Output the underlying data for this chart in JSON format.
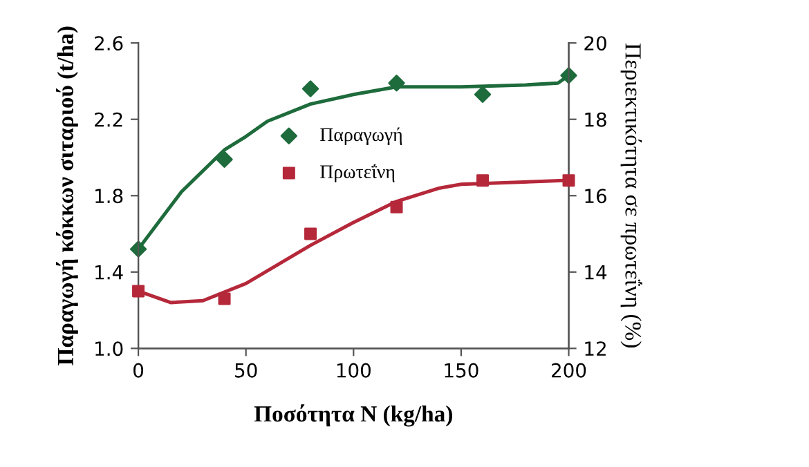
{
  "chart_data": {
    "type": "scatter",
    "xlabel": "Ποσότητα N (kg/ha)",
    "ylabel": "Παραγωγή κόκκων σιταριού (t/ha)",
    "y2label": "Περιεκτικότητα σε πρωτεΐνη (%)",
    "xlim": [
      0,
      200
    ],
    "xticks": [
      0,
      50,
      100,
      150,
      200
    ],
    "ylim": [
      1.0,
      2.6
    ],
    "yticks": [
      {
        "value": 1.0,
        "label": "1.0"
      },
      {
        "value": 1.4,
        "label": "1.4"
      },
      {
        "value": 1.8,
        "label": "1.8"
      },
      {
        "value": 2.2,
        "label": "2.2"
      },
      {
        "value": 2.6,
        "label": "2.6"
      }
    ],
    "y2lim": [
      12,
      20
    ],
    "y2ticks": [
      12,
      14,
      16,
      18,
      20
    ],
    "grid": false,
    "legend": "top",
    "series": [
      {
        "name": "Παραγωγή",
        "marker": "diamond",
        "color": "#1e6b3c",
        "x": [
          0,
          40,
          80,
          120,
          160,
          200
        ],
        "values": [
          1.52,
          1.99,
          2.36,
          2.39,
          2.33,
          2.43
        ]
      },
      {
        "name": "Πρωτεΐνη",
        "marker": "square",
        "color": "#b5283a",
        "axis": "y2",
        "x": [
          0,
          40,
          80,
          120,
          160,
          200
        ],
        "values": [
          13.5,
          13.3,
          15.0,
          15.7,
          16.4,
          16.4
        ]
      },
      {
        "type": "line",
        "color": "#1e6b3c",
        "x": [
          0,
          20,
          40,
          50,
          60,
          80,
          100,
          120,
          150,
          180,
          195,
          200
        ],
        "values": [
          1.52,
          1.82,
          2.04,
          2.11,
          2.19,
          2.28,
          2.33,
          2.37,
          2.37,
          2.38,
          2.39,
          2.43
        ]
      },
      {
        "type": "line",
        "color": "#b5283a",
        "axis": "y2",
        "x": [
          0,
          15,
          30,
          50,
          80,
          100,
          120,
          140,
          150,
          200
        ],
        "values": [
          13.5,
          13.2,
          13.25,
          13.7,
          14.7,
          15.3,
          15.85,
          16.2,
          16.3,
          16.4
        ]
      }
    ]
  }
}
